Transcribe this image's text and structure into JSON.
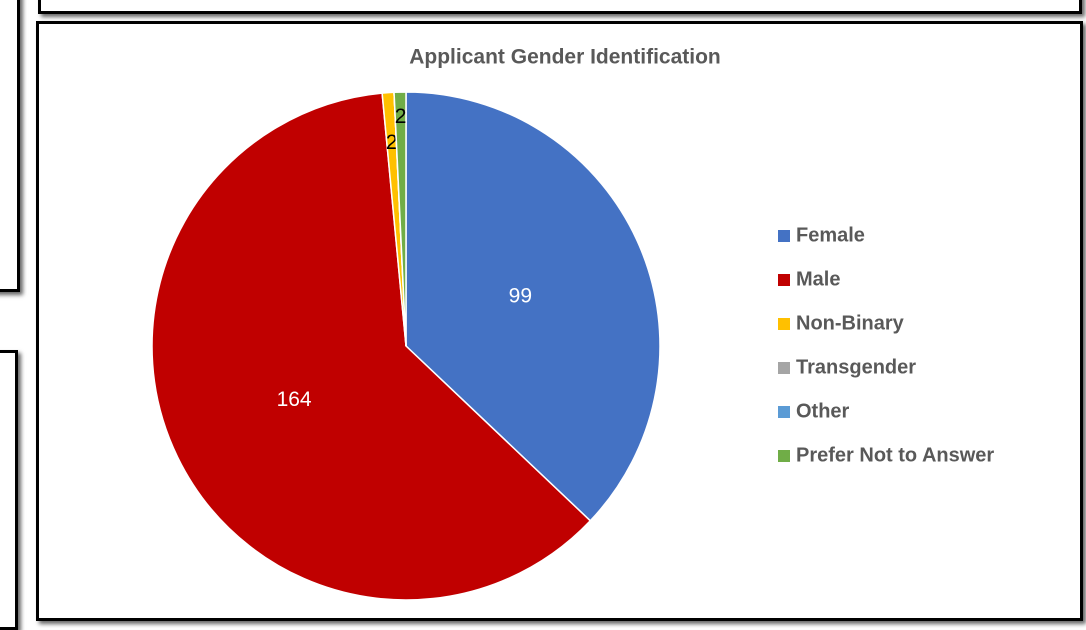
{
  "chart_data": {
    "type": "pie",
    "title": "Applicant Gender Identification",
    "categories": [
      "Female",
      "Male",
      "Non-Binary",
      "Transgender",
      "Other",
      "Prefer Not to Answer"
    ],
    "values": [
      99,
      164,
      2,
      0,
      0,
      2
    ],
    "colors": [
      "#4472c4",
      "#c00000",
      "#ffc000",
      "#a5a5a5",
      "#5b9bd5",
      "#70ad47"
    ],
    "legend": "right"
  }
}
